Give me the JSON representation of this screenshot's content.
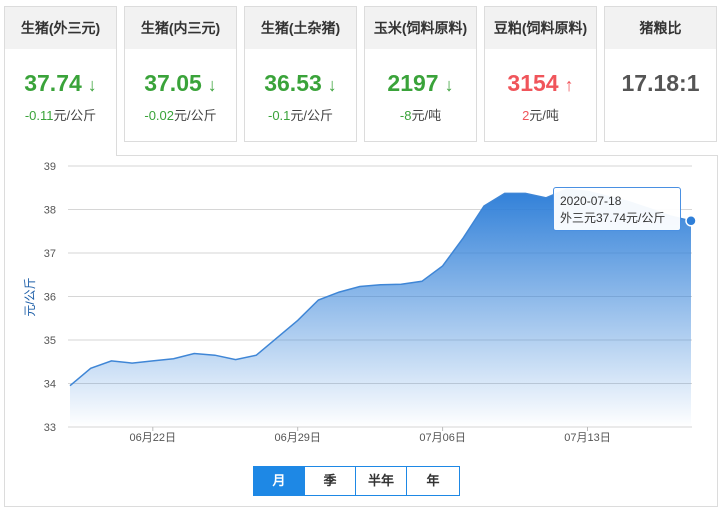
{
  "cards": [
    {
      "name": "生猪(外三元)",
      "price": "37.74",
      "change": "-0.11元/公斤",
      "direction": "down"
    },
    {
      "name": "生猪(内三元)",
      "price": "37.05",
      "change": "-0.02元/公斤",
      "direction": "down"
    },
    {
      "name": "生猪(土杂猪)",
      "price": "36.53",
      "change": "-0.1元/公斤",
      "direction": "down"
    },
    {
      "name": "玉米(饲料原料)",
      "price": "2197",
      "change": "-8元/吨",
      "direction": "down"
    },
    {
      "name": "豆粕(饲料原料)",
      "price": "3154",
      "change": "2元/吨",
      "direction": "up"
    },
    {
      "name": "猪粮比",
      "price": "17.18:1",
      "change": "",
      "direction": "none"
    }
  ],
  "arrows": {
    "down": "🡓",
    "up": "🡑"
  },
  "colors": {
    "accent": "#1e88e5",
    "down": "#3aa33a",
    "up": "#f0555b",
    "line": "#3f86d6"
  },
  "tooltip": {
    "date": "2020-07-18",
    "text": "外三元37.74元/公斤"
  },
  "range_tabs": [
    "月",
    "季",
    "半年",
    "年"
  ],
  "active_range": "月",
  "chart_data": {
    "type": "area",
    "title": "",
    "xlabel": "",
    "ylabel": "元/公斤",
    "ylim": [
      33,
      39
    ],
    "yticks": [
      33,
      34,
      35,
      36,
      37,
      38,
      39
    ],
    "grid": true,
    "x": [
      "2020-06-18",
      "2020-06-19",
      "2020-06-20",
      "2020-06-21",
      "2020-06-22",
      "2020-06-23",
      "2020-06-24",
      "2020-06-25",
      "2020-06-26",
      "2020-06-27",
      "2020-06-28",
      "2020-06-29",
      "2020-06-30",
      "2020-07-01",
      "2020-07-02",
      "2020-07-03",
      "2020-07-04",
      "2020-07-05",
      "2020-07-06",
      "2020-07-07",
      "2020-07-08",
      "2020-07-09",
      "2020-07-10",
      "2020-07-11",
      "2020-07-12",
      "2020-07-13",
      "2020-07-14",
      "2020-07-15",
      "2020-07-16",
      "2020-07-17",
      "2020-07-18"
    ],
    "xtick_labels": [
      {
        "date": "2020-06-22",
        "label": "06月22日"
      },
      {
        "date": "2020-06-29",
        "label": "06月29日"
      },
      {
        "date": "2020-07-06",
        "label": "07月06日"
      },
      {
        "date": "2020-07-13",
        "label": "07月13日"
      }
    ],
    "series": [
      {
        "values": [
          33.95,
          34.35,
          34.52,
          34.47,
          34.52,
          34.57,
          34.69,
          34.65,
          34.55,
          34.65,
          35.05,
          35.45,
          35.92,
          36.1,
          36.23,
          36.27,
          36.28,
          36.35,
          36.7,
          37.35,
          38.08,
          38.37,
          38.37,
          38.27,
          38.47,
          38.42,
          38.3,
          38.18,
          38.02,
          37.85,
          37.74
        ]
      }
    ]
  }
}
